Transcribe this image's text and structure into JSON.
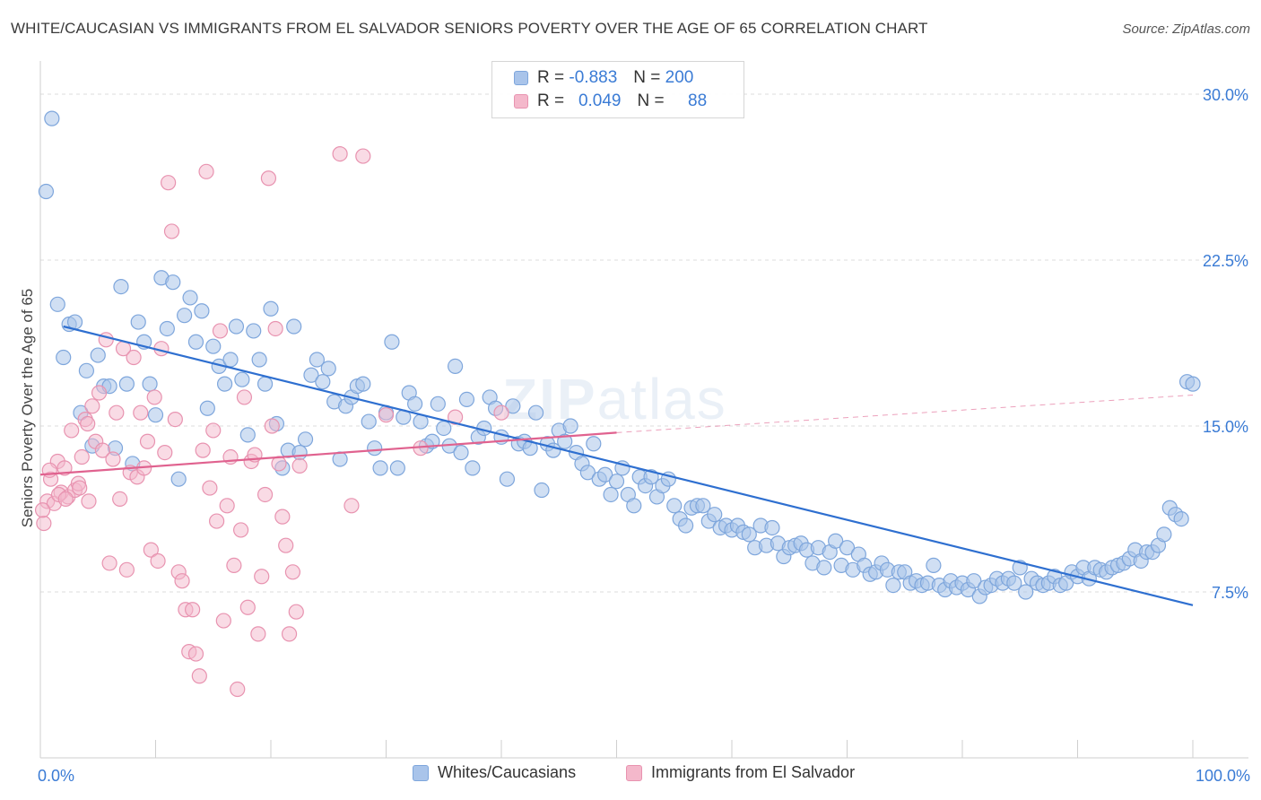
{
  "title": "WHITE/CAUCASIAN VS IMMIGRANTS FROM EL SALVADOR SENIORS POVERTY OVER THE AGE OF 65 CORRELATION CHART",
  "source": "Source: ZipAtlas.com",
  "watermark": {
    "bold": "ZIP",
    "light": "atlas"
  },
  "legend": {
    "rows": [
      {
        "r_label": "R =",
        "r_value": "-0.883",
        "n_label": "N =",
        "n_value": "200",
        "color": "#a9c4ea"
      },
      {
        "r_label": "R =",
        "r_value": "0.049",
        "n_label": "N =",
        "n_value": "88",
        "color": "#f4b8cb"
      }
    ]
  },
  "bottom_legend": [
    {
      "label": "Whites/Caucasians",
      "color": "#a9c4ea"
    },
    {
      "label": "Immigrants from El Salvador",
      "color": "#f4b8cb"
    }
  ],
  "chart_data": {
    "type": "scatter",
    "title": "WHITE/CAUCASIAN VS IMMIGRANTS FROM EL SALVADOR SENIORS POVERTY OVER THE AGE OF 65 CORRELATION CHART",
    "xlabel": "",
    "ylabel": "Seniors Poverty Over the Age of 65",
    "xlim": [
      0,
      100
    ],
    "ylim": [
      0,
      31.5
    ],
    "x_tick_labels": [
      "0.0%",
      "100.0%"
    ],
    "y_ticks": [
      7.5,
      15.0,
      22.5,
      30.0
    ],
    "y_tick_labels": [
      "7.5%",
      "15.0%",
      "22.5%",
      "30.0%"
    ],
    "grid": true,
    "legend_position": "top-center",
    "colors": {
      "blue_fill": "#a9c4ea",
      "blue_stroke": "#7ea6dc",
      "blue_line": "#2e6fd0",
      "pink_fill": "#f4b8cb",
      "pink_stroke": "#e893b0",
      "pink_line": "#e0628f",
      "tick_text": "#3a7bd5"
    },
    "series": [
      {
        "name": "Whites/Caucasians",
        "trend": {
          "x": [
            2,
            100
          ],
          "y": [
            19.5,
            6.9
          ]
        },
        "points": [
          [
            0.5,
            25.6
          ],
          [
            1,
            28.9
          ],
          [
            1.5,
            20.5
          ],
          [
            2,
            18.1
          ],
          [
            2.5,
            19.6
          ],
          [
            3,
            19.7
          ],
          [
            3.5,
            15.6
          ],
          [
            4,
            17.5
          ],
          [
            4.5,
            14.1
          ],
          [
            5,
            18.2
          ],
          [
            5.5,
            16.8
          ],
          [
            6,
            16.8
          ],
          [
            6.5,
            14.0
          ],
          [
            7,
            21.3
          ],
          [
            7.5,
            16.9
          ],
          [
            8,
            13.3
          ],
          [
            8.5,
            19.7
          ],
          [
            9,
            18.8
          ],
          [
            9.5,
            16.9
          ],
          [
            10,
            15.5
          ],
          [
            10.5,
            21.7
          ],
          [
            11,
            19.4
          ],
          [
            11.5,
            21.5
          ],
          [
            12,
            12.6
          ],
          [
            12.5,
            20.0
          ],
          [
            13,
            20.8
          ],
          [
            13.5,
            18.8
          ],
          [
            14,
            20.2
          ],
          [
            14.5,
            15.8
          ],
          [
            15,
            18.6
          ],
          [
            15.5,
            17.7
          ],
          [
            16,
            16.9
          ],
          [
            16.5,
            18.0
          ],
          [
            17,
            19.5
          ],
          [
            17.5,
            17.1
          ],
          [
            18,
            14.6
          ],
          [
            18.5,
            19.3
          ],
          [
            19,
            18.0
          ],
          [
            19.5,
            16.9
          ],
          [
            20,
            20.3
          ],
          [
            20.5,
            15.1
          ],
          [
            21,
            13.1
          ],
          [
            21.5,
            13.9
          ],
          [
            22,
            19.5
          ],
          [
            22.5,
            13.8
          ],
          [
            23,
            14.4
          ],
          [
            23.5,
            17.3
          ],
          [
            24,
            18.0
          ],
          [
            24.5,
            17.0
          ],
          [
            25,
            17.6
          ],
          [
            25.5,
            16.1
          ],
          [
            26,
            13.5
          ],
          [
            26.5,
            15.9
          ],
          [
            27,
            16.3
          ],
          [
            27.5,
            16.8
          ],
          [
            28,
            16.9
          ],
          [
            28.5,
            15.2
          ],
          [
            29,
            14.0
          ],
          [
            29.5,
            13.1
          ],
          [
            30,
            15.6
          ],
          [
            30.5,
            18.8
          ],
          [
            31,
            13.1
          ],
          [
            31.5,
            15.4
          ],
          [
            32,
            16.5
          ],
          [
            32.5,
            16.0
          ],
          [
            33,
            15.2
          ],
          [
            33.5,
            14.1
          ],
          [
            34,
            14.3
          ],
          [
            34.5,
            16.0
          ],
          [
            35,
            14.9
          ],
          [
            35.5,
            14.1
          ],
          [
            36,
            17.7
          ],
          [
            36.5,
            13.8
          ],
          [
            37,
            16.2
          ],
          [
            37.5,
            13.1
          ],
          [
            38,
            14.5
          ],
          [
            38.5,
            14.9
          ],
          [
            39,
            16.3
          ],
          [
            39.5,
            15.8
          ],
          [
            40,
            14.5
          ],
          [
            40.5,
            12.6
          ],
          [
            41,
            15.9
          ],
          [
            41.5,
            14.2
          ],
          [
            42,
            14.3
          ],
          [
            42.5,
            14.0
          ],
          [
            43,
            15.6
          ],
          [
            43.5,
            12.1
          ],
          [
            44,
            14.2
          ],
          [
            44.5,
            13.9
          ],
          [
            45,
            14.8
          ],
          [
            45.5,
            14.3
          ],
          [
            46,
            15.0
          ],
          [
            46.5,
            13.8
          ],
          [
            47,
            13.3
          ],
          [
            47.5,
            12.9
          ],
          [
            48,
            14.2
          ],
          [
            48.5,
            12.6
          ],
          [
            49,
            12.8
          ],
          [
            49.5,
            11.9
          ],
          [
            50,
            12.5
          ],
          [
            50.5,
            13.1
          ],
          [
            51,
            11.9
          ],
          [
            51.5,
            11.4
          ],
          [
            52,
            12.7
          ],
          [
            52.5,
            12.3
          ],
          [
            53,
            12.7
          ],
          [
            53.5,
            11.8
          ],
          [
            54,
            12.3
          ],
          [
            54.5,
            12.6
          ],
          [
            55,
            11.4
          ],
          [
            55.5,
            10.8
          ],
          [
            56,
            10.5
          ],
          [
            56.5,
            11.3
          ],
          [
            57,
            11.4
          ],
          [
            57.5,
            11.4
          ],
          [
            58,
            10.7
          ],
          [
            58.5,
            11.0
          ],
          [
            59,
            10.4
          ],
          [
            59.5,
            10.5
          ],
          [
            60,
            10.3
          ],
          [
            60.5,
            10.5
          ],
          [
            61,
            10.2
          ],
          [
            61.5,
            10.1
          ],
          [
            62,
            9.5
          ],
          [
            62.5,
            10.5
          ],
          [
            63,
            9.6
          ],
          [
            63.5,
            10.4
          ],
          [
            64,
            9.7
          ],
          [
            64.5,
            9.1
          ],
          [
            65,
            9.5
          ],
          [
            65.5,
            9.6
          ],
          [
            66,
            9.7
          ],
          [
            66.5,
            9.4
          ],
          [
            67,
            8.8
          ],
          [
            67.5,
            9.5
          ],
          [
            68,
            8.6
          ],
          [
            68.5,
            9.3
          ],
          [
            69,
            9.8
          ],
          [
            69.5,
            8.7
          ],
          [
            70,
            9.5
          ],
          [
            70.5,
            8.5
          ],
          [
            71,
            9.2
          ],
          [
            71.5,
            8.7
          ],
          [
            72,
            8.3
          ],
          [
            72.5,
            8.4
          ],
          [
            73,
            8.8
          ],
          [
            73.5,
            8.5
          ],
          [
            74,
            7.8
          ],
          [
            74.5,
            8.4
          ],
          [
            75,
            8.4
          ],
          [
            75.5,
            7.9
          ],
          [
            76,
            8.0
          ],
          [
            76.5,
            7.8
          ],
          [
            77,
            7.9
          ],
          [
            77.5,
            8.7
          ],
          [
            78,
            7.8
          ],
          [
            78.5,
            7.6
          ],
          [
            79,
            8.0
          ],
          [
            79.5,
            7.7
          ],
          [
            80,
            7.9
          ],
          [
            80.5,
            7.6
          ],
          [
            81,
            8.0
          ],
          [
            81.5,
            7.3
          ],
          [
            82,
            7.7
          ],
          [
            82.5,
            7.8
          ],
          [
            83,
            8.1
          ],
          [
            83.5,
            7.9
          ],
          [
            84,
            8.1
          ],
          [
            84.5,
            7.9
          ],
          [
            85,
            8.6
          ],
          [
            85.5,
            7.5
          ],
          [
            86,
            8.1
          ],
          [
            86.5,
            7.9
          ],
          [
            87,
            7.8
          ],
          [
            87.5,
            7.9
          ],
          [
            88,
            8.2
          ],
          [
            88.5,
            7.8
          ],
          [
            89,
            7.9
          ],
          [
            89.5,
            8.4
          ],
          [
            90,
            8.2
          ],
          [
            90.5,
            8.6
          ],
          [
            91,
            8.1
          ],
          [
            91.5,
            8.6
          ],
          [
            92,
            8.5
          ],
          [
            92.5,
            8.4
          ],
          [
            93,
            8.6
          ],
          [
            93.5,
            8.7
          ],
          [
            94,
            8.8
          ],
          [
            94.5,
            9.0
          ],
          [
            95,
            9.4
          ],
          [
            95.5,
            8.9
          ],
          [
            96,
            9.3
          ],
          [
            96.5,
            9.3
          ],
          [
            97,
            9.6
          ],
          [
            97.5,
            10.1
          ],
          [
            98,
            11.3
          ],
          [
            98.5,
            11.0
          ],
          [
            99,
            10.8
          ],
          [
            99.5,
            17.0
          ],
          [
            100,
            16.9
          ]
        ]
      },
      {
        "name": "Immigrants from El Salvador",
        "trend": {
          "x": [
            0,
            50
          ],
          "y": [
            12.8,
            14.7
          ],
          "dashed_to": {
            "x": 100,
            "y": 16.4
          }
        },
        "points": [
          [
            0.3,
            10.6
          ],
          [
            0.6,
            11.6
          ],
          [
            0.9,
            12.6
          ],
          [
            1.2,
            11.5
          ],
          [
            1.5,
            13.4
          ],
          [
            1.8,
            12.0
          ],
          [
            2.1,
            13.1
          ],
          [
            2.4,
            11.8
          ],
          [
            2.7,
            14.8
          ],
          [
            3.0,
            12.1
          ],
          [
            3.3,
            12.4
          ],
          [
            3.6,
            13.6
          ],
          [
            3.9,
            15.3
          ],
          [
            4.2,
            11.6
          ],
          [
            4.5,
            15.9
          ],
          [
            4.8,
            14.3
          ],
          [
            5.1,
            16.5
          ],
          [
            5.4,
            13.9
          ],
          [
            5.7,
            18.9
          ],
          [
            6.0,
            8.8
          ],
          [
            6.3,
            13.5
          ],
          [
            6.6,
            15.6
          ],
          [
            6.9,
            11.7
          ],
          [
            7.2,
            18.5
          ],
          [
            7.5,
            8.5
          ],
          [
            7.8,
            12.9
          ],
          [
            8.1,
            18.1
          ],
          [
            8.4,
            12.7
          ],
          [
            8.7,
            15.6
          ],
          [
            9.0,
            13.1
          ],
          [
            9.3,
            14.3
          ],
          [
            9.6,
            9.4
          ],
          [
            9.9,
            16.3
          ],
          [
            10.2,
            8.9
          ],
          [
            10.5,
            18.5
          ],
          [
            10.8,
            13.8
          ],
          [
            11.1,
            26.0
          ],
          [
            11.4,
            23.8
          ],
          [
            11.7,
            15.3
          ],
          [
            12.0,
            8.4
          ],
          [
            12.3,
            8.0
          ],
          [
            12.6,
            6.7
          ],
          [
            12.9,
            4.8
          ],
          [
            13.2,
            6.7
          ],
          [
            13.5,
            4.7
          ],
          [
            13.8,
            3.7
          ],
          [
            14.1,
            13.9
          ],
          [
            14.4,
            26.5
          ],
          [
            14.7,
            12.2
          ],
          [
            15.0,
            14.8
          ],
          [
            15.3,
            10.7
          ],
          [
            15.6,
            19.3
          ],
          [
            15.9,
            6.2
          ],
          [
            16.2,
            11.4
          ],
          [
            16.5,
            13.6
          ],
          [
            16.8,
            8.7
          ],
          [
            17.1,
            3.1
          ],
          [
            17.4,
            10.3
          ],
          [
            17.7,
            16.3
          ],
          [
            18.0,
            6.8
          ],
          [
            18.3,
            13.4
          ],
          [
            18.6,
            13.7
          ],
          [
            18.9,
            5.6
          ],
          [
            19.2,
            8.2
          ],
          [
            19.5,
            11.9
          ],
          [
            19.8,
            26.2
          ],
          [
            20.1,
            15.0
          ],
          [
            20.4,
            19.4
          ],
          [
            20.7,
            13.3
          ],
          [
            21.0,
            10.9
          ],
          [
            21.3,
            9.6
          ],
          [
            21.6,
            5.6
          ],
          [
            21.9,
            8.4
          ],
          [
            22.2,
            6.6
          ],
          [
            22.5,
            13.2
          ],
          [
            26.0,
            27.3
          ],
          [
            27.0,
            11.4
          ],
          [
            28.0,
            27.2
          ],
          [
            30.0,
            15.5
          ],
          [
            33.0,
            14.0
          ],
          [
            36.0,
            15.4
          ],
          [
            40.0,
            15.6
          ],
          [
            0.2,
            11.2
          ],
          [
            0.8,
            13.0
          ],
          [
            1.6,
            11.9
          ],
          [
            2.2,
            11.7
          ],
          [
            3.4,
            12.2
          ],
          [
            4.1,
            15.1
          ]
        ]
      }
    ]
  }
}
